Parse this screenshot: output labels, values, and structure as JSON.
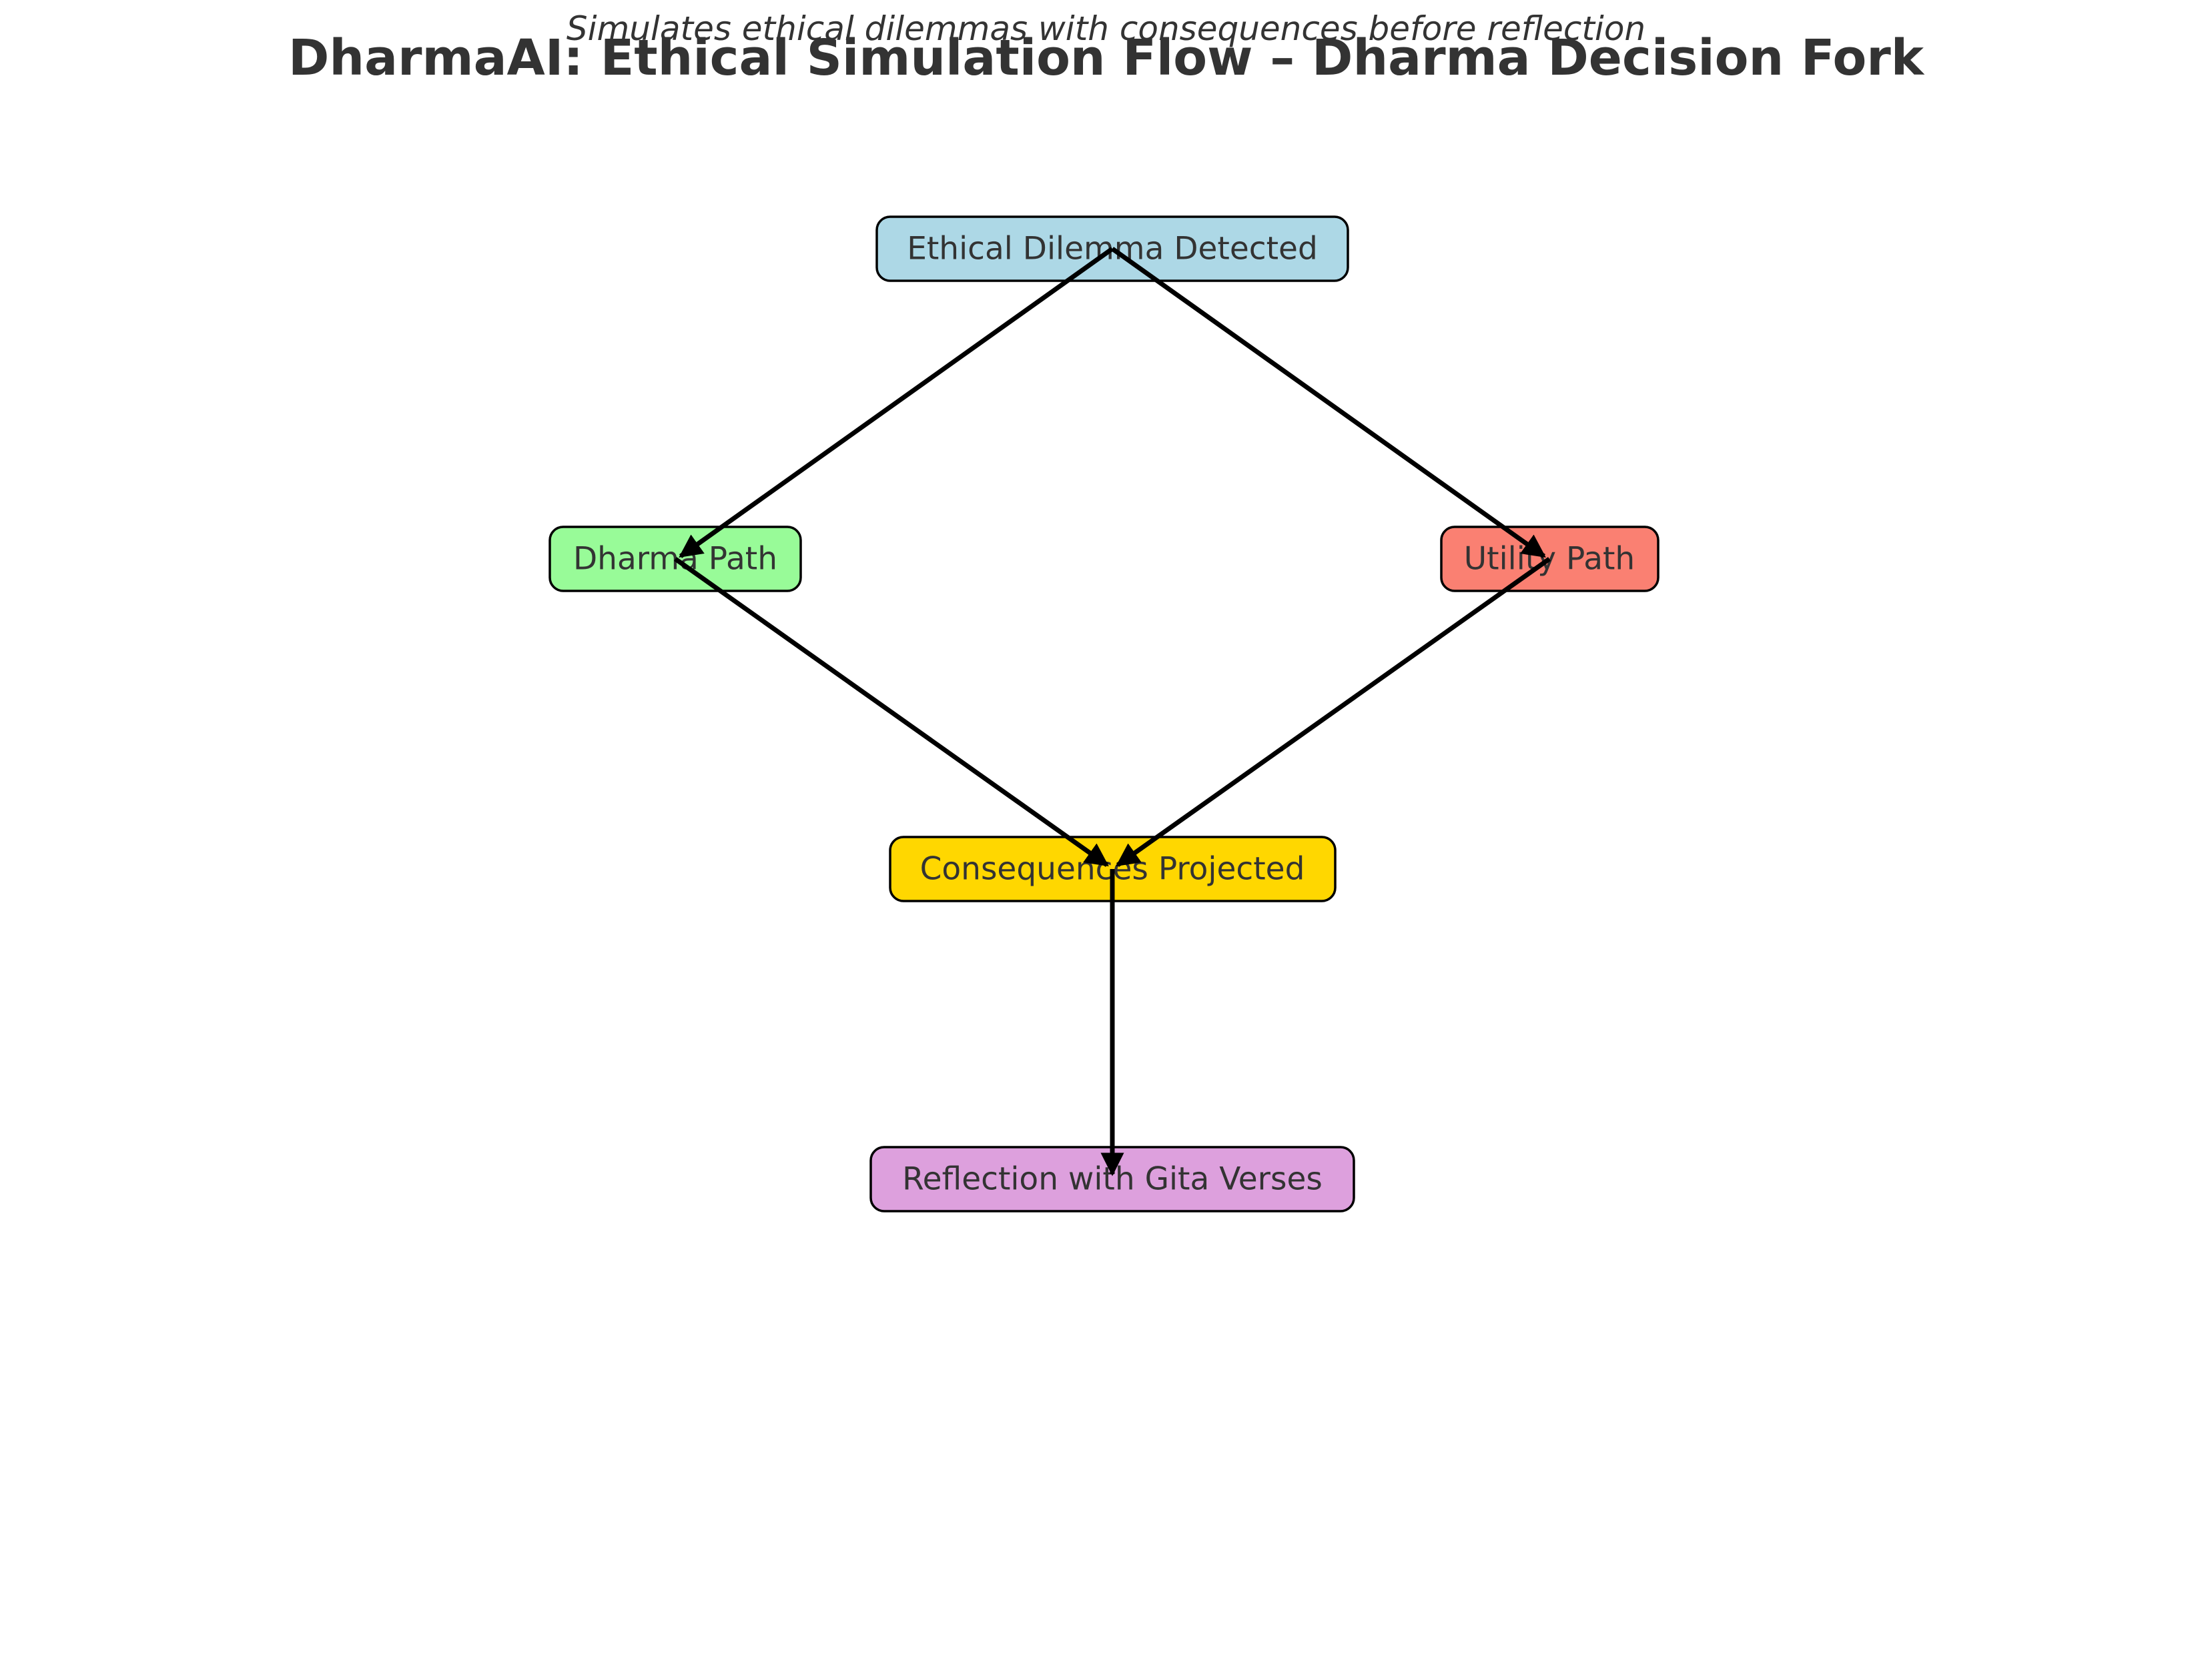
{
  "header": {
    "title": "DharmaAI: Ethical Simulation Flow – Dharma Decision Fork",
    "subtitle": "Simulates ethical dilemmas with consequences before reflection"
  },
  "nodes": {
    "dilemma": {
      "label": "Ethical Dilemma Detected",
      "color": "#add8e6"
    },
    "dharma": {
      "label": "Dharma Path",
      "color": "#98fb98"
    },
    "utility": {
      "label": "Utility Path",
      "color": "#fa8072"
    },
    "consequences": {
      "label": "Consequences Projected",
      "color": "#ffd700"
    },
    "reflection": {
      "label": "Reflection with Gita Verses",
      "color": "#dda0dd"
    }
  },
  "edges": [
    {
      "from": "dilemma",
      "to": "dharma"
    },
    {
      "from": "dilemma",
      "to": "utility"
    },
    {
      "from": "dharma",
      "to": "consequences"
    },
    {
      "from": "utility",
      "to": "consequences"
    },
    {
      "from": "consequences",
      "to": "reflection"
    }
  ]
}
